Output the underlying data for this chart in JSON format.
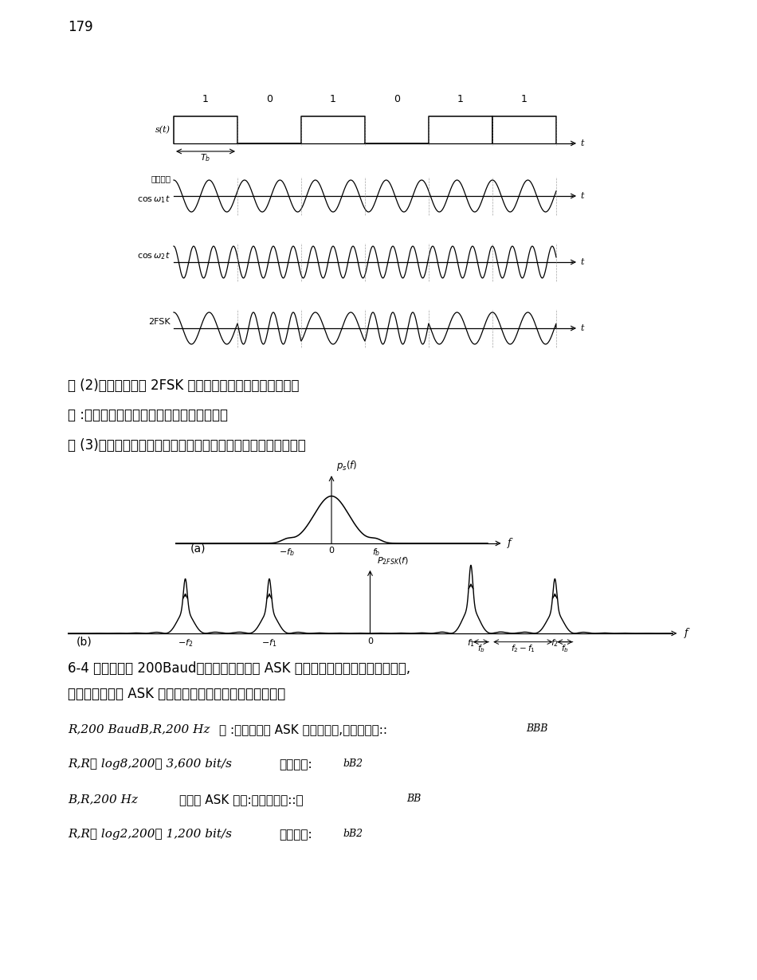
{
  "page_number": "179",
  "bg_color": "#ffffff",
  "fig_width": 9.5,
  "fig_height": 12.3,
  "bits": [
    1,
    0,
    1,
    0,
    1,
    1
  ],
  "freq1": 1.8,
  "freq2": 3.2,
  "q2": "解 (2)试讨论这时的 2FSK 信号应选择怎样的解调器解调？",
  "a2": "答 :选择相干解调和非相干解调器解调均可。",
  "q3": "解 (3)若发送数字信息是等概率的，试画出它的功率谱密度草图。",
  "p64a": "6-4 设传码率为 200Baud，若是采用八进制 ASK 系统，求系统的带宽和信息速率,",
  "p64b": "若是采用二进制 ASK 系统，其带宽和信息速率又为多少？",
  "carrier_label": "载波信号",
  "s1_italic": "R,200 BaudB,R,200 Hz",
  "s1_cn": "解 :已知八进制 ASK 系统传码率,系统的带宽::",
  "s1_sub": "BBB",
  "s2_italic": "R,R， log8,200， 3,600 bit/s",
  "s2_cn": "信息速率:",
  "s2_sub": "bB2",
  "s3_italic": "B,R,200 Hz",
  "s3_cn": "二进制 ASK 系统:系统的带宽::，",
  "s3_sub": "BB",
  "s4_italic": "R,R， log2,200， 1,200 bit/s",
  "s4_cn": "信息速率:",
  "s4_sub": "bB2"
}
